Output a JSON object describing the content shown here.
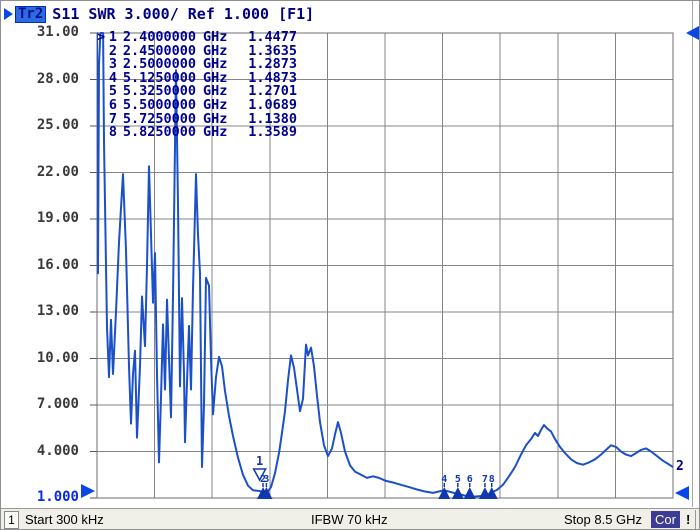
{
  "header": {
    "indicator_icon": "play-triangle",
    "trace_badge": "Tr2",
    "title": "S11 SWR 3.000/ Ref 1.000 [F1]"
  },
  "y_axis": {
    "labels": [
      "31.00",
      "28.00",
      "25.00",
      "22.00",
      "19.00",
      "16.00",
      "13.00",
      "10.00",
      "7.000",
      "4.000",
      "1.000"
    ],
    "ref_label": "1.000"
  },
  "markers": [
    {
      "prefix": ">",
      "n": "1",
      "freq": "2.4000000",
      "unit": "GHz",
      "value": "1.4477"
    },
    {
      "prefix": "",
      "n": "2",
      "freq": "2.4500000",
      "unit": "GHz",
      "value": "1.3635"
    },
    {
      "prefix": "",
      "n": "3",
      "freq": "2.5000000",
      "unit": "GHz",
      "value": "1.2873"
    },
    {
      "prefix": "",
      "n": "4",
      "freq": "5.1250000",
      "unit": "GHz",
      "value": "1.4873"
    },
    {
      "prefix": "",
      "n": "5",
      "freq": "5.3250000",
      "unit": "GHz",
      "value": "1.2701"
    },
    {
      "prefix": "",
      "n": "6",
      "freq": "5.5000000",
      "unit": "GHz",
      "value": "1.0689"
    },
    {
      "prefix": "",
      "n": "7",
      "freq": "5.7250000",
      "unit": "GHz",
      "value": "1.1380"
    },
    {
      "prefix": "",
      "n": "8",
      "freq": "5.8250000",
      "unit": "GHz",
      "value": "1.3589"
    }
  ],
  "trace_end_label": "2",
  "status_bar": {
    "channel": "1",
    "start": "Start 300 kHz",
    "ifbw": "IFBW 70 kHz",
    "stop": "Stop 8.5 GHz",
    "cor": "Cor",
    "warning": "!"
  },
  "colors": {
    "trace": "#1b50c8",
    "navy_text": "#000090",
    "grid": "#858585",
    "marker_glyph": "#1238b0",
    "indicator_blue": "#0a46e8"
  },
  "chart_data": {
    "type": "line",
    "title": "S11 SWR 3.000/ Ref 1.000 [F1]",
    "xlabel": "Frequency, Start 300 kHz to Stop 8.5 GHz",
    "ylabel": "SWR, 3.000 per division, Ref 1.000",
    "x_max_ghz": 8.5,
    "x_start": "300 kHz",
    "x_stop": "8.5 GHz",
    "y_range": [
      1,
      31
    ],
    "y_ticks": [
      1,
      4,
      7,
      10,
      13,
      16,
      19,
      22,
      25,
      28,
      31
    ],
    "grid_divisions_x": 10,
    "grid_divisions_y": 10,
    "legend": "off",
    "series": [
      {
        "name": "Tr2 S11 SWR",
        "points": [
          [
            0.0,
            31.0
          ],
          [
            0.015,
            15.5
          ],
          [
            0.03,
            29.0
          ],
          [
            0.05,
            31.0
          ],
          [
            0.09,
            31.0
          ],
          [
            0.103,
            24.0
          ],
          [
            0.148,
            12.0
          ],
          [
            0.177,
            8.8
          ],
          [
            0.207,
            12.5
          ],
          [
            0.236,
            9.0
          ],
          [
            0.28,
            13.0
          ],
          [
            0.325,
            17.5
          ],
          [
            0.384,
            21.9
          ],
          [
            0.428,
            17.0
          ],
          [
            0.472,
            9.5
          ],
          [
            0.502,
            5.8
          ],
          [
            0.531,
            9.0
          ],
          [
            0.561,
            10.5
          ],
          [
            0.59,
            4.9
          ],
          [
            0.635,
            9.5
          ],
          [
            0.664,
            14.0
          ],
          [
            0.708,
            10.8
          ],
          [
            0.738,
            16.0
          ],
          [
            0.767,
            22.4
          ],
          [
            0.797,
            18.0
          ],
          [
            0.826,
            13.6
          ],
          [
            0.856,
            16.8
          ],
          [
            0.885,
            9.0
          ],
          [
            0.915,
            3.3
          ],
          [
            0.944,
            7.5
          ],
          [
            0.974,
            12.2
          ],
          [
            1.003,
            8.0
          ],
          [
            1.033,
            13.8
          ],
          [
            1.062,
            10.0
          ],
          [
            1.092,
            6.2
          ],
          [
            1.121,
            14.0
          ],
          [
            1.166,
            28.6
          ],
          [
            1.195,
            20.0
          ],
          [
            1.225,
            8.2
          ],
          [
            1.254,
            13.9
          ],
          [
            1.284,
            9.0
          ],
          [
            1.299,
            4.6
          ],
          [
            1.328,
            8.5
          ],
          [
            1.358,
            12.1
          ],
          [
            1.387,
            8.0
          ],
          [
            1.417,
            14.5
          ],
          [
            1.461,
            21.9
          ],
          [
            1.49,
            18.0
          ],
          [
            1.52,
            15.5
          ],
          [
            1.55,
            3.0
          ],
          [
            1.579,
            7.0
          ],
          [
            1.609,
            15.2
          ],
          [
            1.653,
            14.7
          ],
          [
            1.683,
            10.0
          ],
          [
            1.712,
            6.4
          ],
          [
            1.756,
            8.8
          ],
          [
            1.8,
            10.1
          ],
          [
            1.845,
            9.5
          ],
          [
            1.889,
            7.9
          ],
          [
            1.948,
            6.3
          ],
          [
            2.007,
            5.0
          ],
          [
            2.081,
            3.6
          ],
          [
            2.155,
            2.5
          ],
          [
            2.228,
            1.8
          ],
          [
            2.302,
            1.5
          ],
          [
            2.4,
            1.45
          ],
          [
            2.45,
            1.36
          ],
          [
            2.5,
            1.29
          ],
          [
            2.568,
            1.7
          ],
          [
            2.627,
            2.6
          ],
          [
            2.686,
            3.9
          ],
          [
            2.73,
            5.2
          ],
          [
            2.775,
            6.6
          ],
          [
            2.819,
            8.6
          ],
          [
            2.863,
            10.2
          ],
          [
            2.907,
            9.4
          ],
          [
            2.951,
            8.0
          ],
          [
            2.996,
            6.6
          ],
          [
            3.04,
            7.4
          ],
          [
            3.084,
            10.9
          ],
          [
            3.114,
            10.2
          ],
          [
            3.158,
            10.7
          ],
          [
            3.202,
            9.5
          ],
          [
            3.246,
            7.6
          ],
          [
            3.291,
            5.9
          ],
          [
            3.35,
            4.4
          ],
          [
            3.409,
            3.7
          ],
          [
            3.468,
            4.2
          ],
          [
            3.512,
            5.1
          ],
          [
            3.556,
            5.9
          ],
          [
            3.601,
            5.2
          ],
          [
            3.66,
            4.0
          ],
          [
            3.733,
            3.1
          ],
          [
            3.807,
            2.7
          ],
          [
            3.896,
            2.5
          ],
          [
            3.984,
            2.3
          ],
          [
            4.073,
            2.4
          ],
          [
            4.161,
            2.3
          ],
          [
            4.265,
            2.1
          ],
          [
            4.368,
            2.0
          ],
          [
            4.486,
            1.85
          ],
          [
            4.604,
            1.7
          ],
          [
            4.722,
            1.55
          ],
          [
            4.84,
            1.42
          ],
          [
            4.958,
            1.33
          ],
          [
            5.076,
            1.45
          ],
          [
            5.125,
            1.49
          ],
          [
            5.224,
            1.38
          ],
          [
            5.325,
            1.27
          ],
          [
            5.416,
            1.17
          ],
          [
            5.5,
            1.07
          ],
          [
            5.608,
            1.1
          ],
          [
            5.725,
            1.14
          ],
          [
            5.825,
            1.36
          ],
          [
            5.903,
            1.52
          ],
          [
            5.991,
            1.85
          ],
          [
            6.08,
            2.4
          ],
          [
            6.168,
            3.0
          ],
          [
            6.257,
            3.8
          ],
          [
            6.331,
            4.4
          ],
          [
            6.404,
            4.8
          ],
          [
            6.463,
            5.2
          ],
          [
            6.508,
            5.0
          ],
          [
            6.552,
            5.4
          ],
          [
            6.596,
            5.7
          ],
          [
            6.64,
            5.5
          ],
          [
            6.699,
            5.3
          ],
          [
            6.758,
            4.8
          ],
          [
            6.832,
            4.3
          ],
          [
            6.906,
            3.9
          ],
          [
            6.995,
            3.5
          ],
          [
            7.083,
            3.25
          ],
          [
            7.172,
            3.15
          ],
          [
            7.26,
            3.3
          ],
          [
            7.349,
            3.5
          ],
          [
            7.438,
            3.8
          ],
          [
            7.511,
            4.1
          ],
          [
            7.585,
            4.4
          ],
          [
            7.659,
            4.3
          ],
          [
            7.733,
            4.0
          ],
          [
            7.807,
            3.8
          ],
          [
            7.88,
            3.7
          ],
          [
            7.954,
            3.9
          ],
          [
            8.028,
            4.1
          ],
          [
            8.102,
            4.2
          ],
          [
            8.176,
            4.0
          ],
          [
            8.264,
            3.7
          ],
          [
            8.353,
            3.4
          ],
          [
            8.427,
            3.2
          ],
          [
            8.5,
            3.0
          ]
        ]
      }
    ],
    "markers": [
      {
        "n": "1",
        "freq_ghz": 2.4,
        "swr": 1.4477,
        "style": "open"
      },
      {
        "n": "2",
        "freq_ghz": 2.45,
        "swr": 1.3635,
        "style": "filled"
      },
      {
        "n": "3",
        "freq_ghz": 2.5,
        "swr": 1.2873,
        "style": "filled"
      },
      {
        "n": "4",
        "freq_ghz": 5.125,
        "swr": 1.4873,
        "style": "filled"
      },
      {
        "n": "5",
        "freq_ghz": 5.325,
        "swr": 1.2701,
        "style": "filled"
      },
      {
        "n": "6",
        "freq_ghz": 5.5,
        "swr": 1.0689,
        "style": "filled"
      },
      {
        "n": "7",
        "freq_ghz": 5.725,
        "swr": 1.138,
        "style": "filled"
      },
      {
        "n": "8",
        "freq_ghz": 5.825,
        "swr": 1.3589,
        "style": "filled"
      }
    ]
  }
}
